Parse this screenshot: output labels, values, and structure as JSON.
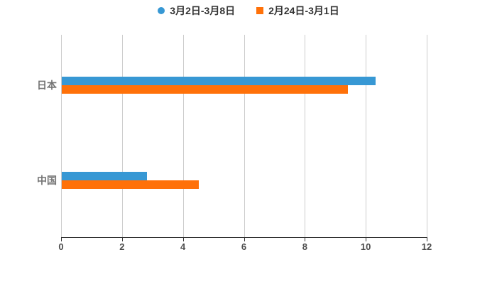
{
  "chart_data": {
    "type": "bar",
    "orientation": "horizontal",
    "title": "",
    "categories": [
      "日本",
      "中国"
    ],
    "series": [
      {
        "name": "3月2日-3月8日",
        "marker": "circle",
        "color": "#3798D4",
        "values": [
          10.3,
          2.8
        ]
      },
      {
        "name": "2月24日-3月1日",
        "marker": "square",
        "color": "#FF7109",
        "values": [
          9.4,
          4.5
        ]
      }
    ],
    "xlabel": "",
    "ylabel": "",
    "xlim": [
      0,
      12
    ],
    "x_ticks": [
      "0",
      "2",
      "4",
      "6",
      "8",
      "10",
      "12"
    ],
    "grid": "vertical",
    "legend_position": "top-center",
    "background": "#FFFFFF"
  },
  "colors": {
    "gridline": "#CCCCCC",
    "axis_line": "#333333",
    "tick_mark": "#333333",
    "tick_label": "#4D4D4D",
    "category_label": "#737373",
    "legend_text": "#333333"
  }
}
